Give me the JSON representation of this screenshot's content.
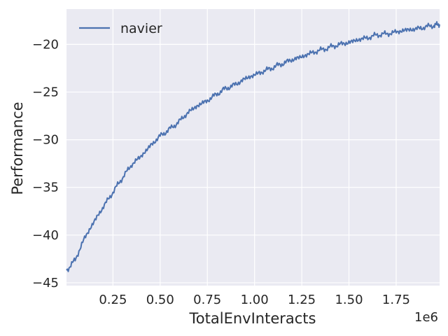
{
  "chart_data": {
    "type": "line",
    "xlabel": "TotalEnvInteracts",
    "ylabel": "Performance",
    "x_offset_label": "1e6",
    "xlim": [
      4000,
      1980000
    ],
    "ylim": [
      -45.3,
      -16.3
    ],
    "xticks": [
      0.25,
      0.5,
      0.75,
      1.0,
      1.25,
      1.5,
      1.75
    ],
    "xtick_labels": [
      "0.25",
      "0.50",
      "0.75",
      "1.00",
      "1.25",
      "1.50",
      "1.75"
    ],
    "yticks": [
      -45,
      -40,
      -35,
      -30,
      -25,
      -20
    ],
    "ytick_labels": [
      "−45",
      "−40",
      "−35",
      "−30",
      "−25",
      "−20"
    ],
    "grid": true,
    "legend_position": "upper-left",
    "colors": {
      "plot_bg": "#eaeaf2",
      "grid": "#ffffff",
      "series": "#4c72b0",
      "text": "#262626"
    },
    "series": [
      {
        "name": "navier",
        "x": [
          4000,
          50000,
          100000,
          150000,
          200000,
          250000,
          300000,
          350000,
          400000,
          450000,
          500000,
          550000,
          600000,
          650000,
          700000,
          750000,
          800000,
          850000,
          900000,
          950000,
          1000000,
          1050000,
          1100000,
          1150000,
          1200000,
          1250000,
          1300000,
          1350000,
          1400000,
          1450000,
          1500000,
          1550000,
          1600000,
          1650000,
          1700000,
          1750000,
          1800000,
          1850000,
          1900000,
          1950000,
          1980000
        ],
        "y": [
          -43.7,
          -42.6,
          -40.3,
          -38.6,
          -37.0,
          -35.5,
          -34.0,
          -32.6,
          -31.7,
          -30.6,
          -29.6,
          -28.9,
          -28.1,
          -27.1,
          -26.4,
          -25.9,
          -25.2,
          -24.6,
          -24.2,
          -23.6,
          -23.2,
          -22.8,
          -22.4,
          -22.0,
          -21.6,
          -21.3,
          -20.9,
          -20.6,
          -20.3,
          -20.0,
          -19.8,
          -19.5,
          -19.3,
          -19.0,
          -18.9,
          -18.7,
          -18.5,
          -18.4,
          -18.2,
          -18.0,
          -17.9
        ]
      }
    ]
  }
}
